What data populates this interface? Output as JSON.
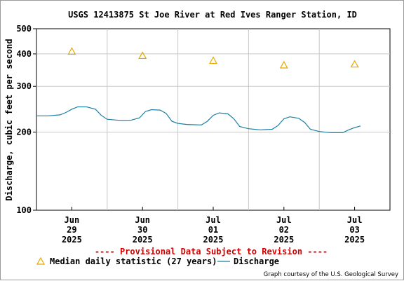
{
  "chart_data": {
    "type": "line",
    "title": "USGS 12413875 St Joe River at Red Ives Ranger Station, ID",
    "ylabel": "Discharge, cubic feet per second",
    "y_scale": "log",
    "ylim": [
      100,
      500
    ],
    "y_ticks": [
      100,
      200,
      300,
      400,
      500
    ],
    "xlim": [
      "2025-06-28 12:00",
      "2025-07-03 12:00"
    ],
    "x_ticks": [
      {
        "x": "2025-06-29 00:00",
        "month": "Jun",
        "day": "29",
        "year": "2025"
      },
      {
        "x": "2025-06-30 00:00",
        "month": "Jun",
        "day": "30",
        "year": "2025"
      },
      {
        "x": "2025-07-01 00:00",
        "month": "Jul",
        "day": "01",
        "year": "2025"
      },
      {
        "x": "2025-07-02 00:00",
        "month": "Jul",
        "day": "02",
        "year": "2025"
      },
      {
        "x": "2025-07-03 00:00",
        "month": "Jul",
        "day": "03",
        "year": "2025"
      }
    ],
    "grid": true,
    "series": [
      {
        "name": "Discharge",
        "kind": "line",
        "color": "#1b7fa6",
        "points": [
          [
            "2025-06-28 12:00",
            231
          ],
          [
            "2025-06-28 16:00",
            231
          ],
          [
            "2025-06-28 20:00",
            233
          ],
          [
            "2025-06-28 22:00",
            238
          ],
          [
            "2025-06-29 00:00",
            245
          ],
          [
            "2025-06-29 02:00",
            250
          ],
          [
            "2025-06-29 05:00",
            250
          ],
          [
            "2025-06-29 08:00",
            245
          ],
          [
            "2025-06-29 10:00",
            232
          ],
          [
            "2025-06-29 12:00",
            224
          ],
          [
            "2025-06-29 16:00",
            222
          ],
          [
            "2025-06-29 20:00",
            222
          ],
          [
            "2025-06-29 23:00",
            227
          ],
          [
            "2025-06-30 01:00",
            240
          ],
          [
            "2025-06-30 03:00",
            244
          ],
          [
            "2025-06-30 06:00",
            243
          ],
          [
            "2025-06-30 08:00",
            236
          ],
          [
            "2025-06-30 10:00",
            220
          ],
          [
            "2025-06-30 12:00",
            216
          ],
          [
            "2025-06-30 15:00",
            214
          ],
          [
            "2025-06-30 20:00",
            213
          ],
          [
            "2025-06-30 22:00",
            220
          ],
          [
            "2025-07-01 00:00",
            232
          ],
          [
            "2025-07-01 02:00",
            237
          ],
          [
            "2025-07-01 05:00",
            235
          ],
          [
            "2025-07-01 07:00",
            225
          ],
          [
            "2025-07-01 09:00",
            210
          ],
          [
            "2025-07-01 12:00",
            206
          ],
          [
            "2025-07-01 16:00",
            204
          ],
          [
            "2025-07-01 20:00",
            205
          ],
          [
            "2025-07-01 22:00",
            212
          ],
          [
            "2025-07-02 00:00",
            225
          ],
          [
            "2025-07-02 02:00",
            229
          ],
          [
            "2025-07-02 05:00",
            226
          ],
          [
            "2025-07-02 07:00",
            218
          ],
          [
            "2025-07-02 09:00",
            205
          ],
          [
            "2025-07-02 12:00",
            201
          ],
          [
            "2025-07-02 16:00",
            199
          ],
          [
            "2025-07-02 20:00",
            199
          ],
          [
            "2025-07-02 22:00",
            204
          ],
          [
            "2025-07-03 00:00",
            208
          ],
          [
            "2025-07-03 02:00",
            211
          ]
        ]
      },
      {
        "name": "Median daily statistic (27 years)",
        "kind": "marker",
        "color": "#e8a800",
        "points": [
          [
            "2025-06-29 00:00",
            410
          ],
          [
            "2025-06-30 00:00",
            395
          ],
          [
            "2025-07-01 00:00",
            378
          ],
          [
            "2025-07-02 00:00",
            363
          ],
          [
            "2025-07-03 00:00",
            366
          ]
        ]
      }
    ],
    "legend": {
      "placement": "bottom"
    },
    "annotations": {
      "provisional": "---- Provisional Data Subject to Revision ----",
      "credit": "Graph courtesy of the U.S. Geological Survey"
    }
  }
}
